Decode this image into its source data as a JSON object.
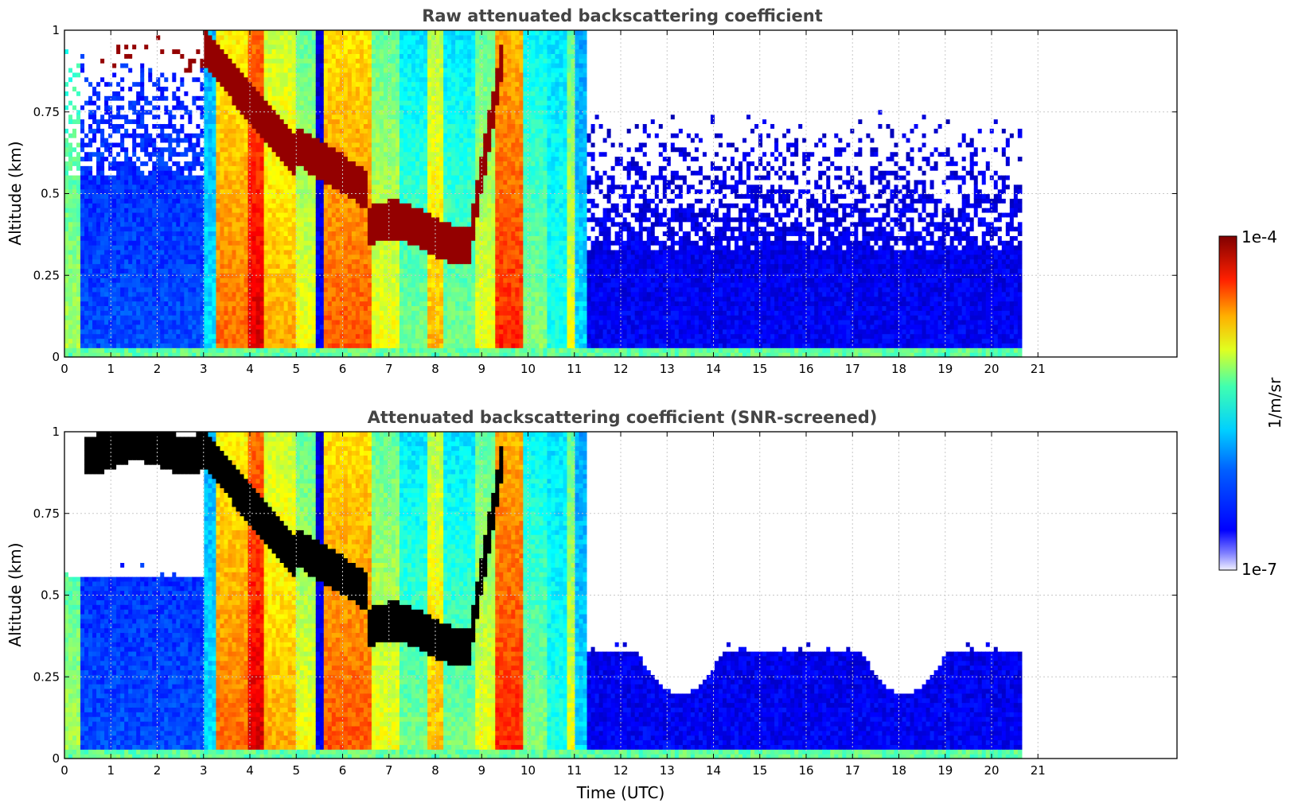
{
  "chart_data": [
    {
      "type": "heatmap",
      "title": "Raw attenuated backscattering coefficient",
      "xlabel": "",
      "ylabel": "Altitude (km)",
      "xlim": [
        0,
        24
      ],
      "ylim": [
        0,
        1
      ],
      "data_xmax": 20.65,
      "x_ticks": [
        "0",
        "1",
        "2",
        "3",
        "4",
        "5",
        "6",
        "7",
        "8",
        "9",
        "10",
        "11",
        "12",
        "13",
        "14",
        "15",
        "16",
        "17",
        "18",
        "19",
        "20",
        "21"
      ],
      "y_ticks": [
        "0",
        "0.25",
        "0.5",
        "0.75",
        "1"
      ],
      "grid": true,
      "screened": false
    },
    {
      "type": "heatmap",
      "title": "Attenuated backscattering coefficient (SNR-screened)",
      "xlabel": "Time (UTC)",
      "ylabel": "Altitude (km)",
      "xlim": [
        0,
        24
      ],
      "ylim": [
        0,
        1
      ],
      "data_xmax": 20.65,
      "x_ticks": [
        "0",
        "1",
        "2",
        "3",
        "4",
        "5",
        "6",
        "7",
        "8",
        "9",
        "10",
        "11",
        "12",
        "13",
        "14",
        "15",
        "16",
        "17",
        "18",
        "19",
        "20",
        "21"
      ],
      "y_ticks": [
        "0",
        "0.25",
        "0.5",
        "0.75",
        "1"
      ],
      "grid": true,
      "screened": true
    }
  ],
  "colorbar": {
    "max_label": "1e-4",
    "min_label": "1e-7",
    "unit_label": "1/m/sr",
    "colormap": "jet",
    "scale": "log"
  },
  "colors": {
    "title": "#444444",
    "grid": "#c8c8c8",
    "saturated": "#000000"
  }
}
